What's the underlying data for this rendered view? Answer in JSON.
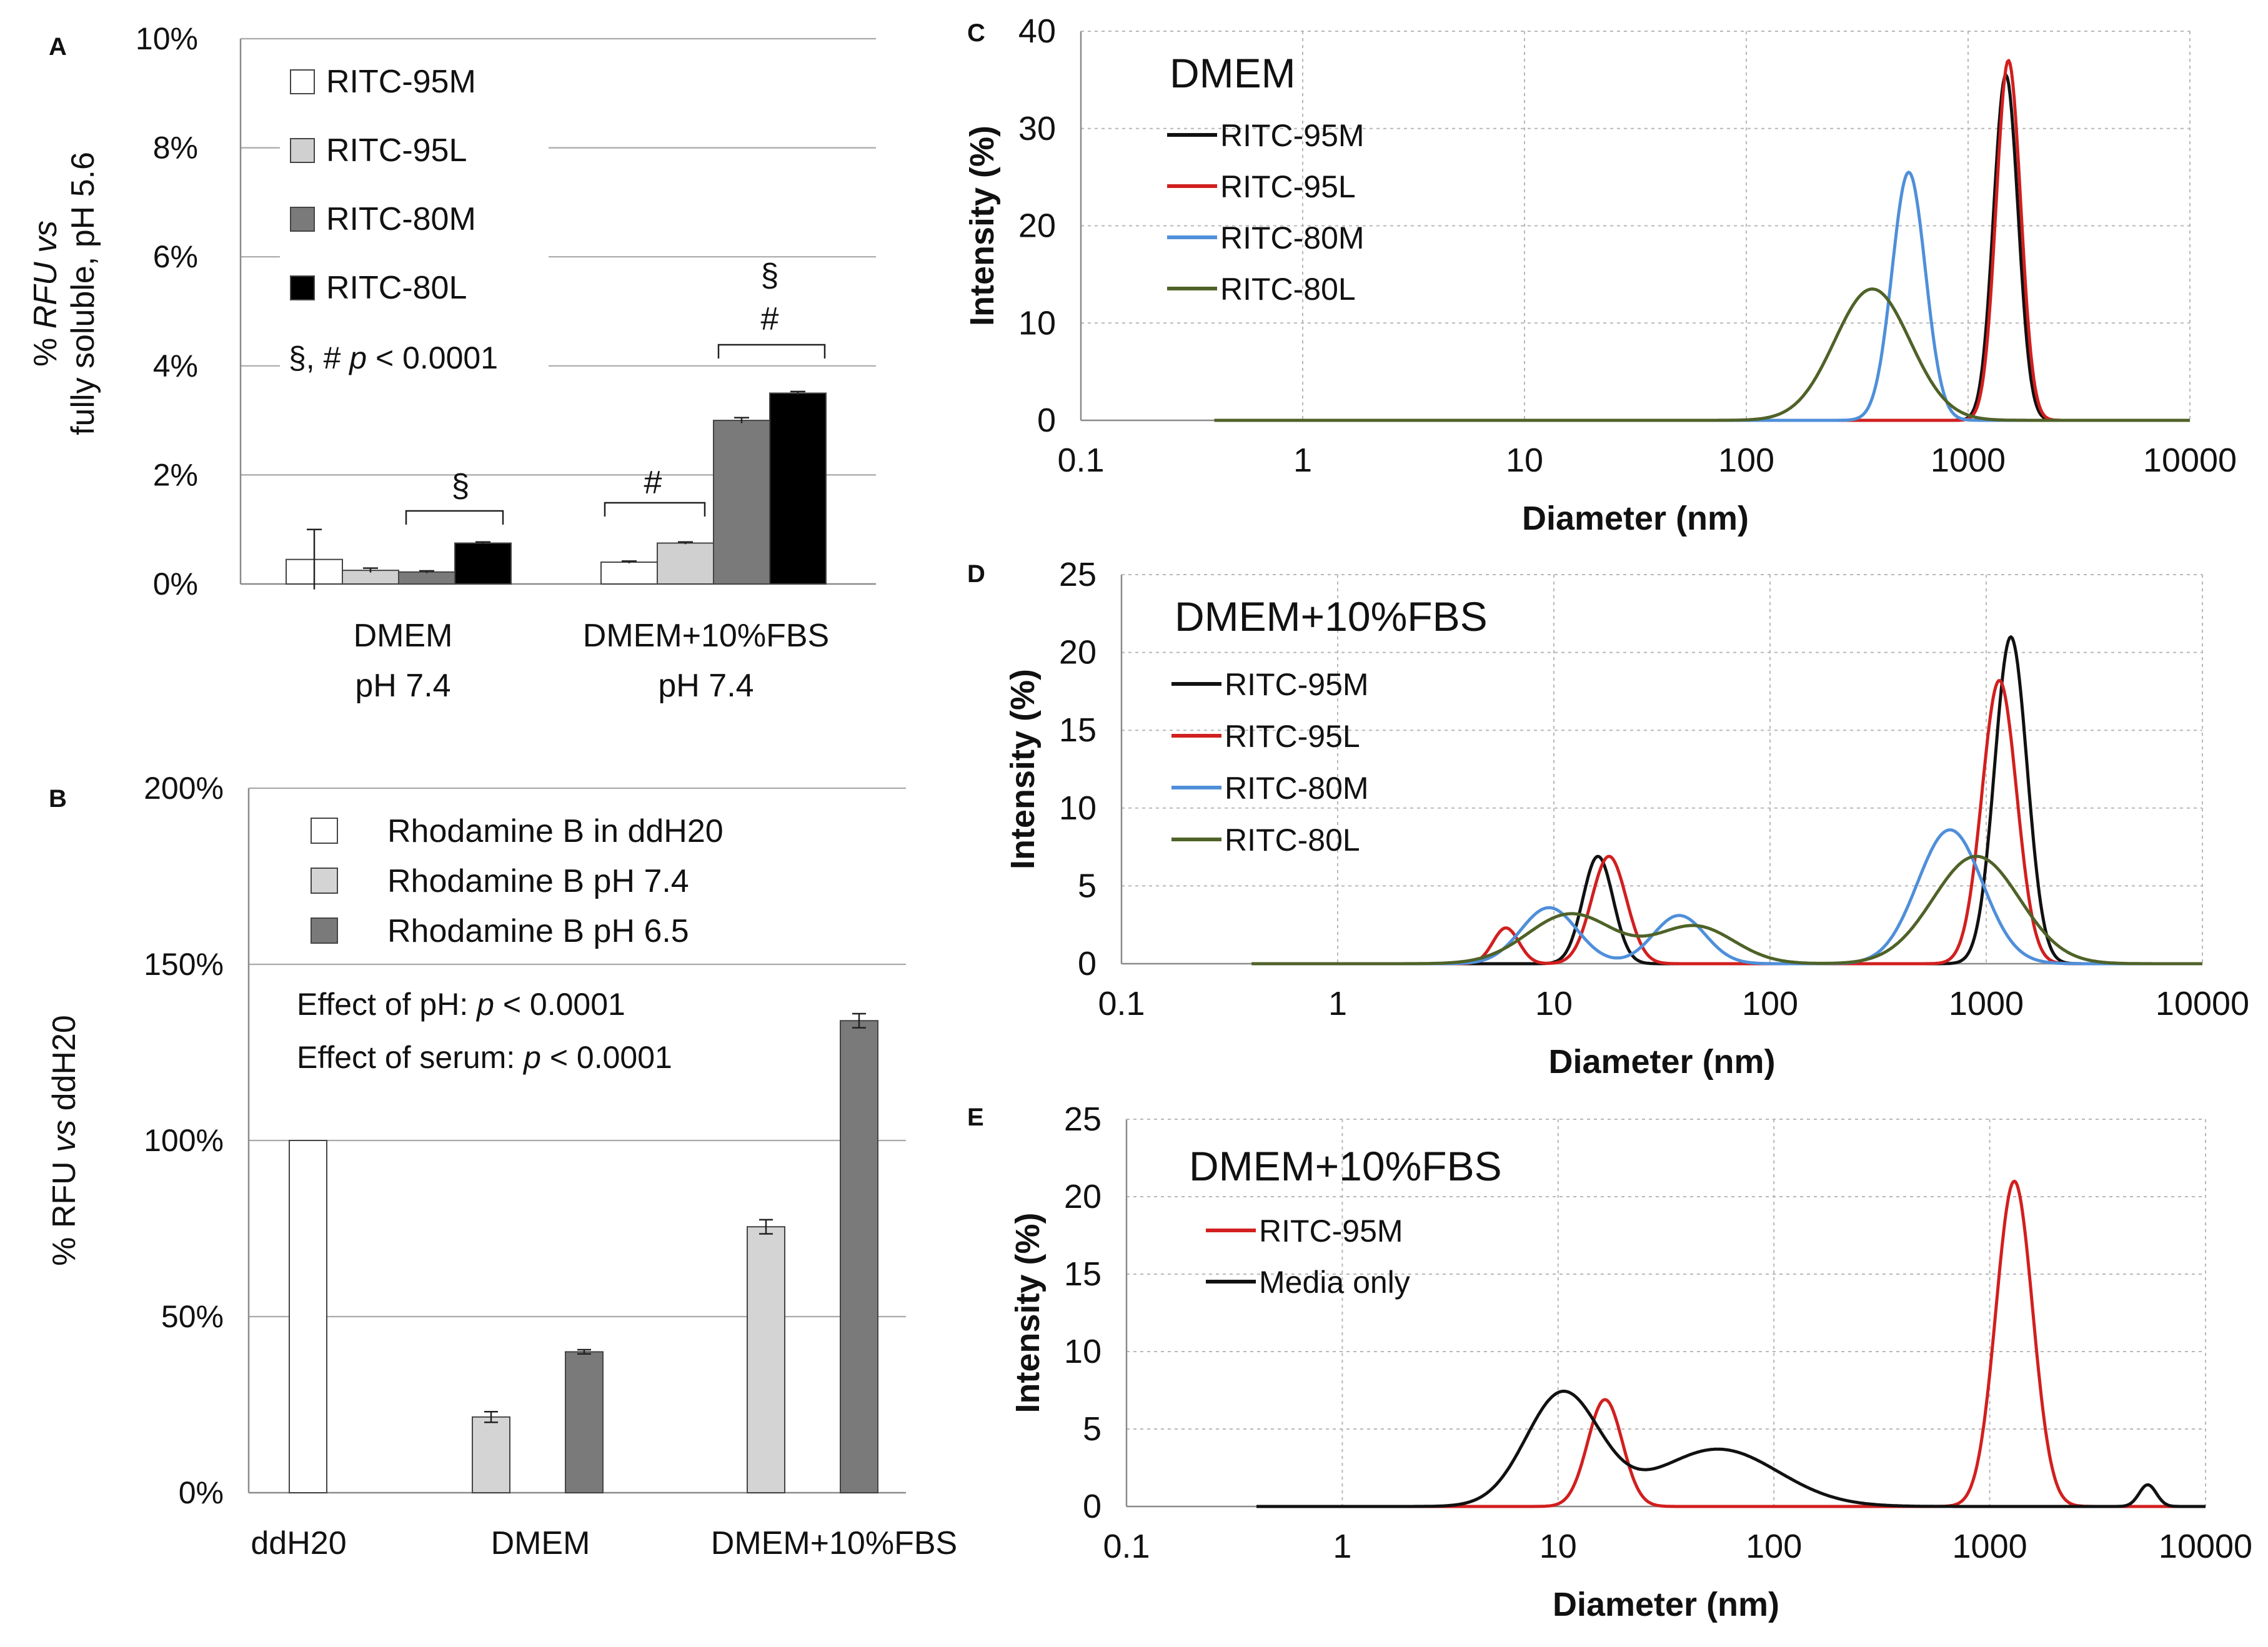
{
  "figure_title": "",
  "chart_data": [
    {
      "panel": "A",
      "type": "bar",
      "ylabel_lines": [
        "% RFU vs",
        "fully soluble, pH 5.6"
      ],
      "yticks": [
        "0%",
        "2%",
        "4%",
        "6%",
        "8%",
        "10%"
      ],
      "ytick_values": [
        0,
        2,
        4,
        6,
        8,
        10
      ],
      "ylim": [
        0,
        10
      ],
      "grid": true,
      "group_labels": [
        [
          "DMEM",
          "pH 7.4"
        ],
        [
          "DMEM+10%FBS",
          "pH 7.4"
        ]
      ],
      "series": [
        {
          "name": "RITC-95M",
          "color": "#ffffff",
          "values": [
            0.45,
            0.4
          ],
          "errors": [
            0.55,
            0.02
          ]
        },
        {
          "name": "RITC-95L",
          "color": "#d0d0d0",
          "values": [
            0.25,
            0.75
          ],
          "errors": [
            0.04,
            0.02
          ]
        },
        {
          "name": "RITC-80M",
          "color": "#7a7a7a",
          "values": [
            0.22,
            3.0
          ],
          "errors": [
            0.02,
            0.05
          ]
        },
        {
          "name": "RITC-80L",
          "color": "#000000",
          "values": [
            0.75,
            3.5
          ],
          "errors": [
            0.02,
            0.03
          ]
        }
      ],
      "legend_position": "top-left",
      "stats_note": "§, # p < 0.0001",
      "annotations": [
        "§",
        "#",
        "§",
        "#"
      ]
    },
    {
      "panel": "B",
      "type": "bar",
      "ylabel": "% RFU vs ddH20",
      "yticks": [
        "0%",
        "50%",
        "100%",
        "150%",
        "200%"
      ],
      "ytick_values": [
        0,
        50,
        100,
        150,
        200
      ],
      "ylim": [
        0,
        200
      ],
      "grid": true,
      "categories": [
        "ddH20",
        "DMEM",
        "DMEM+10%FBS"
      ],
      "series": [
        {
          "name": "Rhodamine B in ddH20",
          "color": "#ffffff",
          "values": [
            100,
            null,
            null
          ],
          "errors": [
            0,
            null,
            null
          ]
        },
        {
          "name": "Rhodamine B pH 7.4",
          "color": "#d4d4d4",
          "values": [
            null,
            21.5,
            75.5
          ],
          "errors": [
            null,
            1.5,
            2.0
          ]
        },
        {
          "name": "Rhodamine B pH 6.5",
          "color": "#7a7a7a",
          "values": [
            null,
            40,
            134
          ],
          "errors": [
            null,
            0.6,
            2.0
          ]
        }
      ],
      "legend_position": "top-left",
      "stats_lines": [
        "Effect of pH: p < 0.0001",
        "Effect of serum: p < 0.0001"
      ]
    },
    {
      "panel": "C",
      "type": "line",
      "title": "DMEM",
      "xlabel": "Diameter (nm)",
      "ylabel": "Intensity (%)",
      "xscale": "log",
      "xlim": [
        0.1,
        10000
      ],
      "xticks": [
        "0.1",
        "1",
        "10",
        "100",
        "1000",
        "10000"
      ],
      "xtick_values": [
        0.1,
        1,
        10,
        100,
        1000,
        10000
      ],
      "ylim": [
        0,
        40
      ],
      "yticks": [
        "0",
        "10",
        "20",
        "30",
        "40"
      ],
      "ytick_values": [
        0,
        10,
        20,
        30,
        40
      ],
      "x_start": 0.4,
      "legend_position": "top-left",
      "series": [
        {
          "name": "RITC-95M",
          "color": "#111111",
          "peaks": [
            {
              "center": 1480,
              "height": 35.5,
              "width": 0.055
            }
          ]
        },
        {
          "name": "RITC-95L",
          "color": "#d21f1f",
          "peaks": [
            {
              "center": 1520,
              "height": 37.0,
              "width": 0.055
            }
          ]
        },
        {
          "name": "RITC-80M",
          "color": "#4f8fda",
          "peaks": [
            {
              "center": 540,
              "height": 25.5,
              "width": 0.075
            }
          ]
        },
        {
          "name": "RITC-80L",
          "color": "#4f6228",
          "peaks": [
            {
              "center": 370,
              "height": 13.5,
              "width": 0.17
            }
          ]
        }
      ]
    },
    {
      "panel": "D",
      "type": "line",
      "title": "DMEM+10%FBS",
      "xlabel": "Diameter (nm)",
      "ylabel": "Intensity (%)",
      "xscale": "log",
      "xlim": [
        0.1,
        10000
      ],
      "xticks": [
        "0.1",
        "1",
        "10",
        "100",
        "1000",
        "10000"
      ],
      "xtick_values": [
        0.1,
        1,
        10,
        100,
        1000,
        10000
      ],
      "ylim": [
        0,
        25
      ],
      "yticks": [
        "0",
        "5",
        "10",
        "15",
        "20",
        "25"
      ],
      "ytick_values": [
        0,
        5,
        10,
        15,
        20,
        25
      ],
      "x_start": 0.4,
      "legend_position": "top-left",
      "series": [
        {
          "name": "RITC-95M",
          "color": "#111111",
          "peaks": [
            {
              "center": 16,
              "height": 6.9,
              "width": 0.07
            },
            {
              "center": 1300,
              "height": 21.0,
              "width": 0.075
            }
          ]
        },
        {
          "name": "RITC-95L",
          "color": "#d21f1f",
          "peaks": [
            {
              "center": 6,
              "height": 2.3,
              "width": 0.06
            },
            {
              "center": 18,
              "height": 6.9,
              "width": 0.08
            },
            {
              "center": 1150,
              "height": 18.2,
              "width": 0.08
            }
          ]
        },
        {
          "name": "RITC-80M",
          "color": "#4f8fda",
          "peaks": [
            {
              "center": 9.5,
              "height": 3.6,
              "width": 0.13
            },
            {
              "center": 38,
              "height": 3.1,
              "width": 0.12
            },
            {
              "center": 680,
              "height": 8.6,
              "width": 0.15
            }
          ]
        },
        {
          "name": "RITC-80L",
          "color": "#4f6228",
          "peaks": [
            {
              "center": 12,
              "height": 3.2,
              "width": 0.2
            },
            {
              "center": 45,
              "height": 2.4,
              "width": 0.18
            },
            {
              "center": 900,
              "height": 6.9,
              "width": 0.2
            }
          ]
        }
      ]
    },
    {
      "panel": "E",
      "type": "line",
      "title": "DMEM+10%FBS",
      "xlabel": "Diameter (nm)",
      "ylabel": "Intensity (%)",
      "xscale": "log",
      "xlim": [
        0.1,
        10000
      ],
      "xticks": [
        "0.1",
        "1",
        "10",
        "100",
        "1000",
        "10000"
      ],
      "xtick_values": [
        0.1,
        1,
        10,
        100,
        1000,
        10000
      ],
      "ylim": [
        0,
        25
      ],
      "yticks": [
        "0",
        "5",
        "10",
        "15",
        "20",
        "25"
      ],
      "ytick_values": [
        0,
        5,
        10,
        15,
        20,
        25
      ],
      "x_start": 0.4,
      "legend_position": "top-left",
      "series": [
        {
          "name": "RITC-95M",
          "color": "#d21f1f",
          "peaks": [
            {
              "center": 16.5,
              "height": 6.9,
              "width": 0.08
            },
            {
              "center": 1300,
              "height": 21.0,
              "width": 0.085
            }
          ]
        },
        {
          "name": "Media only",
          "color": "#111111",
          "peaks": [
            {
              "center": 10.5,
              "height": 7.3,
              "width": 0.17
            },
            {
              "center": 55,
              "height": 3.7,
              "width": 0.28
            },
            {
              "center": 5400,
              "height": 1.4,
              "width": 0.04
            }
          ]
        }
      ]
    }
  ]
}
